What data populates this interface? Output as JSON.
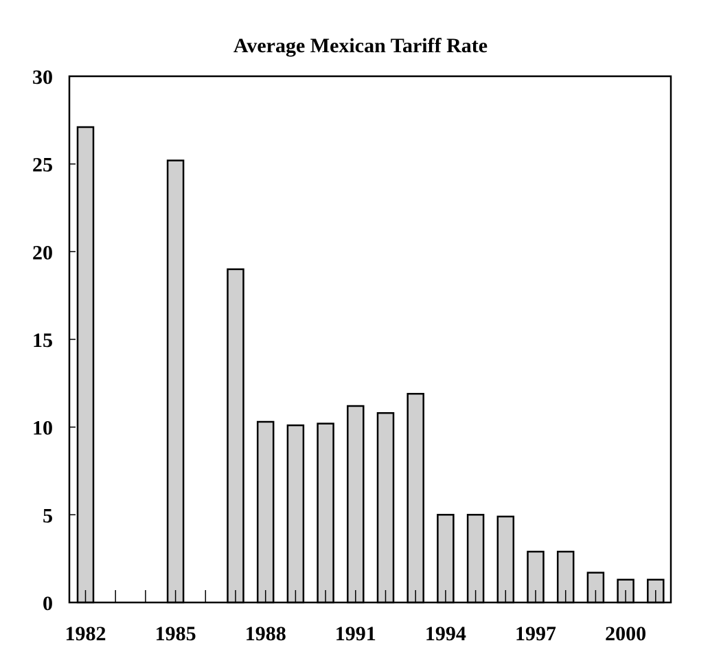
{
  "chart_data": {
    "type": "bar",
    "title": "Average Mexican Tariff Rate",
    "xlabel": "",
    "ylabel": "",
    "categories": [
      "1982",
      "1983",
      "1984",
      "1985",
      "1986",
      "1987",
      "1988",
      "1989",
      "1990",
      "1991",
      "1992",
      "1993",
      "1994",
      "1995",
      "1996",
      "1997",
      "1998",
      "1999",
      "2000",
      "2001"
    ],
    "values": [
      27.1,
      null,
      null,
      25.2,
      null,
      19.0,
      10.3,
      10.1,
      10.2,
      11.2,
      10.8,
      11.9,
      5.0,
      5.0,
      4.9,
      2.9,
      2.9,
      1.7,
      1.3,
      1.3
    ],
    "x_tick_labels": [
      "1982",
      "1985",
      "1988",
      "1991",
      "1994",
      "1997",
      "2000"
    ],
    "y_tick_labels": [
      "0",
      "5",
      "10",
      "15",
      "20",
      "25",
      "30"
    ],
    "ylim": [
      0,
      30
    ],
    "grid": false,
    "legend": "none",
    "bar_color": "#d0d0d0"
  }
}
